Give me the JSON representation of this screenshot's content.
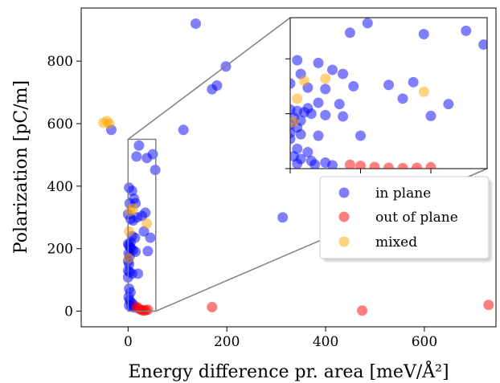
{
  "chart_data": {
    "type": "scatter",
    "xlabel": "Energy difference pr. area [meV/Å²]",
    "ylabel": "Polarization [pC/m]",
    "xlim": [
      -95,
      745
    ],
    "ylim": [
      -50,
      970
    ],
    "xticks": [
      0,
      200,
      400,
      600
    ],
    "yticks": [
      0,
      200,
      400,
      600,
      800
    ],
    "legend_position": "lower-right",
    "grid": false,
    "colors": {
      "in plane": "#0000ff",
      "out of plane": "#ff0000",
      "mixed": "#ffa500"
    },
    "series": [
      {
        "name": "in plane",
        "points": [
          [
            137,
            920
          ],
          [
            198,
            783
          ],
          [
            180,
            722
          ],
          [
            170,
            710
          ],
          [
            112,
            580
          ],
          [
            -34,
            580
          ],
          [
            313,
            300
          ],
          [
            22,
            530
          ],
          [
            17,
            495
          ],
          [
            38,
            490
          ],
          [
            50,
            502
          ],
          [
            55,
            452
          ],
          [
            2,
            395
          ],
          [
            8,
            385
          ],
          [
            12,
            360
          ],
          [
            3,
            345
          ],
          [
            15,
            345
          ],
          [
            0,
            310
          ],
          [
            5,
            295
          ],
          [
            18,
            300
          ],
          [
            28,
            305
          ],
          [
            35,
            315
          ],
          [
            10,
            290
          ],
          [
            32,
            255
          ],
          [
            45,
            235
          ],
          [
            14,
            235
          ],
          [
            8,
            240
          ],
          [
            5,
            220
          ],
          [
            0,
            215
          ],
          [
            2,
            210
          ],
          [
            4,
            205
          ],
          [
            6,
            200
          ],
          [
            10,
            195
          ],
          [
            15,
            190
          ],
          [
            1,
            185
          ],
          [
            3,
            175
          ],
          [
            0,
            160
          ],
          [
            2,
            150
          ],
          [
            40,
            192
          ],
          [
            0,
            130
          ],
          [
            3,
            125
          ],
          [
            8,
            120
          ],
          [
            20,
            120
          ],
          [
            0,
            108
          ],
          [
            2,
            72
          ],
          [
            5,
            60
          ],
          [
            1,
            45
          ],
          [
            3,
            35
          ],
          [
            6,
            28
          ],
          [
            10,
            22
          ],
          [
            2,
            18
          ],
          [
            7,
            15
          ],
          [
            12,
            12
          ]
        ]
      },
      {
        "name": "out of plane",
        "points": [
          [
            17,
            14
          ],
          [
            20,
            10
          ],
          [
            24,
            6
          ],
          [
            28,
            3
          ],
          [
            32,
            2
          ],
          [
            36,
            3
          ],
          [
            40,
            5
          ],
          [
            170,
            13
          ],
          [
            474,
            2
          ],
          [
            730,
            20
          ]
        ]
      },
      {
        "name": "mixed",
        "points": [
          [
            -50,
            603
          ],
          [
            -43,
            608
          ],
          [
            -38,
            600
          ],
          [
            2,
            255
          ],
          [
            4,
            320
          ],
          [
            10,
            328
          ],
          [
            38,
            280
          ],
          [
            1,
            170
          ]
        ]
      }
    ],
    "inset": {
      "xlim": [
        0,
        56
      ],
      "ylim": [
        0,
        550
      ],
      "source_region": {
        "x": [
          0,
          56
        ],
        "y": [
          0,
          550
        ]
      }
    }
  },
  "legend": {
    "entries": [
      {
        "label": "in plane",
        "color": "#0000ff"
      },
      {
        "label": "out of plane",
        "color": "#ff0000"
      },
      {
        "label": "mixed",
        "color": "#ffa500"
      }
    ]
  }
}
